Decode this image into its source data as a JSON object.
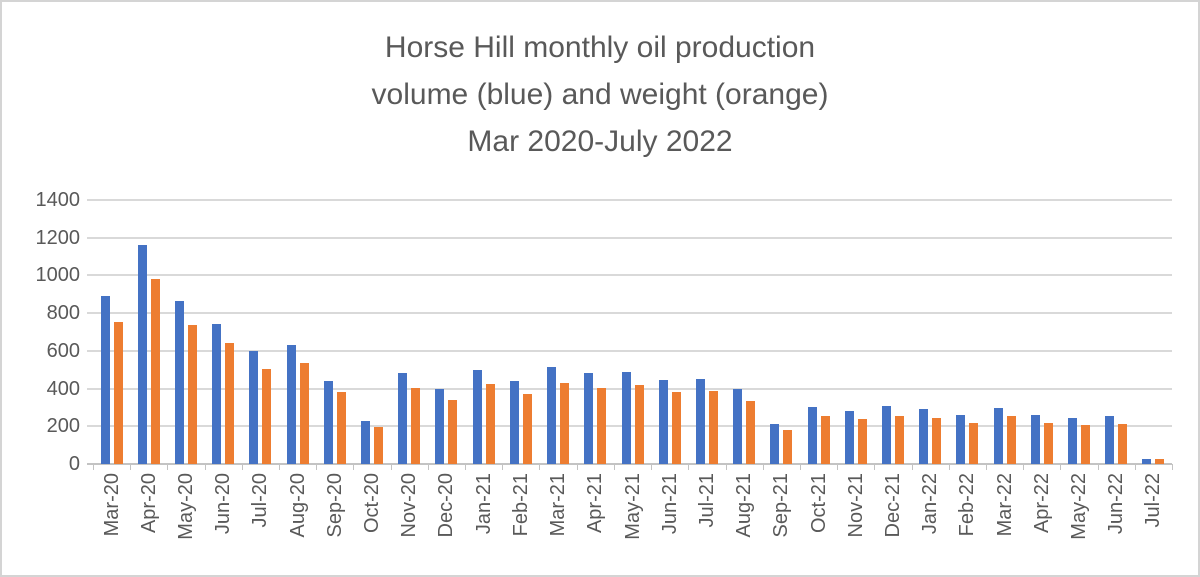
{
  "chart_data": {
    "type": "bar",
    "title": "Horse Hill monthly oil production volume (blue) and weight (orange) Mar 2020-July 2022",
    "title_lines": [
      "Horse Hill monthly oil production",
      "volume (blue) and weight (orange)",
      "Mar 2020-July 2022"
    ],
    "categories": [
      "Mar-20",
      "Apr-20",
      "May-20",
      "Jun-20",
      "Jul-20",
      "Aug-20",
      "Sep-20",
      "Oct-20",
      "Nov-20",
      "Dec-20",
      "Jan-21",
      "Feb-21",
      "Mar-21",
      "Apr-21",
      "May-21",
      "Jun-21",
      "Jul-21",
      "Aug-21",
      "Sep-21",
      "Oct-21",
      "Nov-21",
      "Dec-21",
      "Jan-22",
      "Feb-22",
      "Mar-22",
      "Apr-22",
      "May-22",
      "Jun-22",
      "Jul-22"
    ],
    "series": [
      {
        "name": "volume",
        "color": "#4472C4",
        "values": [
          890,
          1160,
          865,
          745,
          600,
          630,
          440,
          230,
          480,
          400,
          500,
          440,
          515,
          480,
          490,
          445,
          450,
          400,
          210,
          300,
          280,
          305,
          290,
          260,
          295,
          260,
          245,
          255,
          28
        ]
      },
      {
        "name": "weight",
        "color": "#ED7D31",
        "values": [
          755,
          980,
          735,
          640,
          505,
          535,
          380,
          195,
          405,
          340,
          425,
          370,
          430,
          405,
          420,
          380,
          385,
          335,
          180,
          255,
          240,
          255,
          245,
          220,
          255,
          218,
          207,
          210,
          25
        ]
      }
    ],
    "xlabel": "",
    "ylabel": "",
    "ylim": [
      0,
      1400
    ],
    "yticks": [
      0,
      200,
      400,
      600,
      800,
      1000,
      1200,
      1400
    ],
    "grid": true,
    "legend": "none",
    "text_color": "#595959",
    "gridline_color": "#D9D9D9",
    "axis_line_color": "#C3C3C3"
  }
}
